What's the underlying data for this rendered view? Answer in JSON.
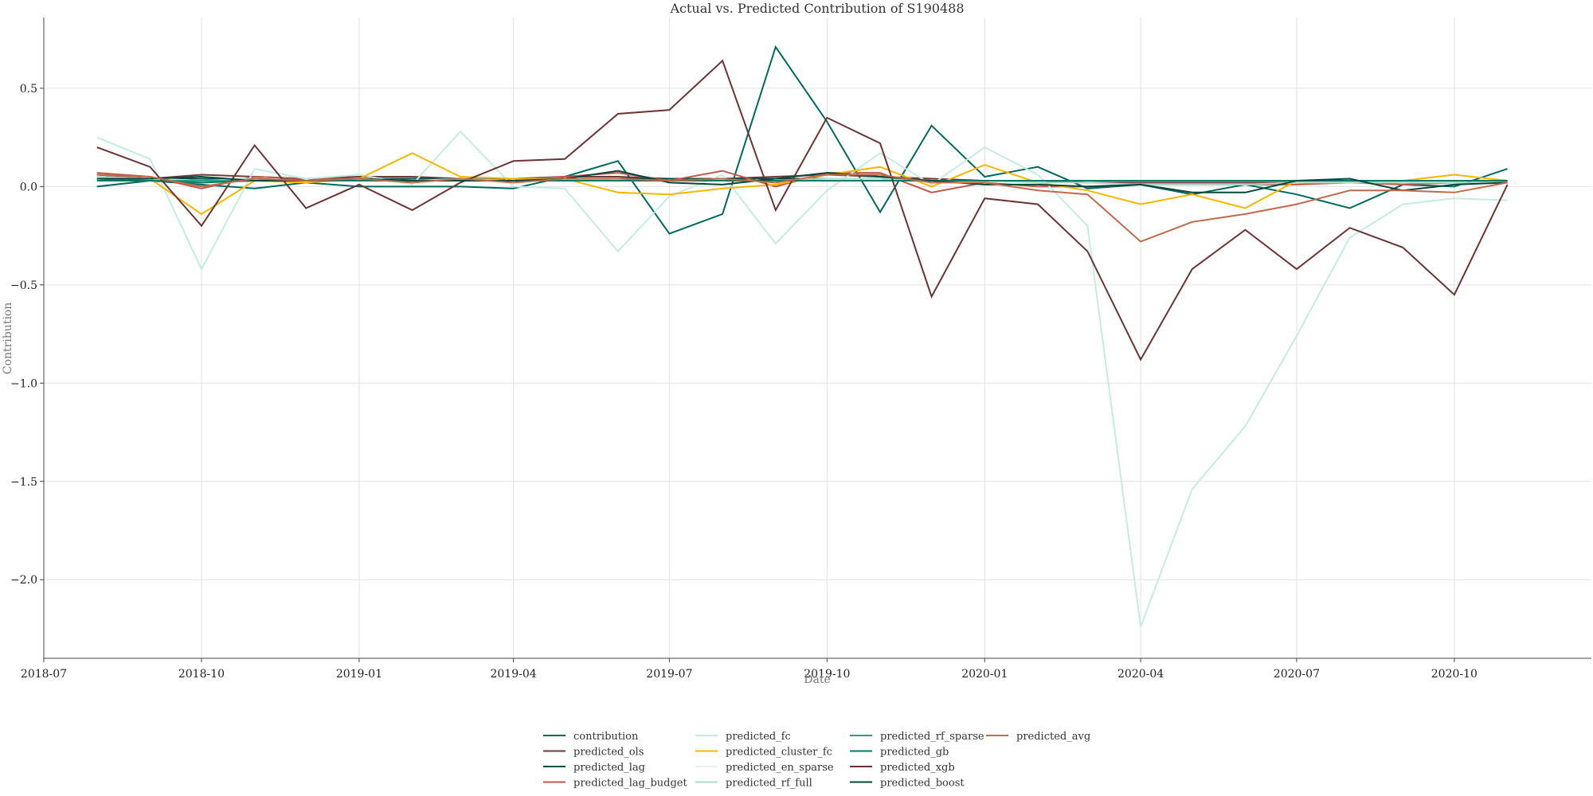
{
  "chart_data": {
    "type": "line",
    "title": "Actual vs. Predicted Contribution of S190488",
    "xlabel": "Date",
    "ylabel": "Contribution",
    "x_axis_type": "date",
    "x_range": [
      "2018-07-01",
      "2020-12-20"
    ],
    "ylim": [
      -2.4,
      0.86
    ],
    "x_ticks": [
      "2018-07",
      "2018-10",
      "2019-01",
      "2019-04",
      "2019-07",
      "2019-10",
      "2020-01",
      "2020-04",
      "2020-07",
      "2020-10"
    ],
    "y_ticks": [
      0.5,
      0.0,
      -0.5,
      -1.0,
      -1.5,
      -2.0
    ],
    "y_tick_labels": [
      "0.5",
      "0.0",
      "−0.5",
      "−1.0",
      "−1.5",
      "−2.0"
    ],
    "grid": true,
    "legend_position": "bottom-center",
    "legend_columns": 4,
    "x": [
      "2018-08",
      "2018-09",
      "2018-10",
      "2018-11",
      "2018-12",
      "2019-01",
      "2019-02",
      "2019-03",
      "2019-04",
      "2019-05",
      "2019-06",
      "2019-07",
      "2019-08",
      "2019-09",
      "2019-10",
      "2019-11",
      "2019-12",
      "2020-01",
      "2020-02",
      "2020-03",
      "2020-04",
      "2020-05",
      "2020-06",
      "2020-07",
      "2020-08",
      "2020-09",
      "2020-10",
      "2020-11"
    ],
    "series": [
      {
        "name": "contribution",
        "color": "#00695c",
        "values": [
          0.0,
          0.03,
          0.01,
          -0.01,
          0.02,
          0.0,
          0.0,
          0.0,
          -0.01,
          0.05,
          0.13,
          -0.24,
          -0.14,
          0.71,
          0.33,
          -0.13,
          0.31,
          0.05,
          0.1,
          -0.01,
          0.01,
          -0.04,
          0.01,
          -0.04,
          -0.11,
          0.01,
          0.0,
          0.09
        ]
      },
      {
        "name": "predicted_ols",
        "color": "#6d3a3a",
        "values": [
          0.06,
          0.04,
          0.06,
          0.05,
          0.04,
          0.05,
          0.05,
          0.04,
          0.04,
          0.05,
          0.05,
          0.04,
          0.04,
          0.05,
          0.06,
          0.05,
          0.04,
          0.03,
          0.03,
          0.02,
          0.02,
          0.02,
          0.02,
          0.02,
          0.02,
          0.02,
          0.02,
          0.02
        ]
      },
      {
        "name": "predicted_lag",
        "color": "#0b4f4a",
        "values": [
          0.04,
          0.04,
          0.04,
          0.03,
          0.04,
          0.04,
          0.04,
          0.04,
          0.04,
          0.04,
          0.04,
          0.04,
          0.04,
          0.04,
          0.04,
          0.04,
          0.03,
          0.03,
          0.03,
          0.03,
          0.03,
          0.03,
          0.03,
          0.03,
          0.03,
          0.03,
          0.03,
          0.03
        ]
      },
      {
        "name": "predicted_lag_budget",
        "color": "#c0584b",
        "values": [
          0.07,
          0.05,
          -0.01,
          0.05,
          0.04,
          0.04,
          0.02,
          0.04,
          0.03,
          0.05,
          0.07,
          0.03,
          0.08,
          0.0,
          0.07,
          0.07,
          -0.03,
          0.02,
          0.0,
          0.0,
          0.01,
          0.01,
          0.01,
          0.01,
          0.02,
          0.01,
          0.02,
          0.02
        ]
      },
      {
        "name": "predicted_fc",
        "color": "#c5ece3",
        "values": [
          0.25,
          0.14,
          -0.42,
          0.09,
          0.04,
          0.06,
          0.01,
          0.28,
          0.0,
          -0.01,
          -0.33,
          -0.05,
          0.06,
          -0.29,
          -0.02,
          0.17,
          0.01,
          0.2,
          0.06,
          -0.2,
          -2.24,
          -1.54,
          -1.22,
          -0.76,
          -0.26,
          -0.09,
          -0.06,
          -0.07
        ]
      },
      {
        "name": "predicted_cluster_fc",
        "color": "#f5b700",
        "values": [
          0.05,
          0.04,
          -0.14,
          0.03,
          0.02,
          0.04,
          0.17,
          0.05,
          0.04,
          0.04,
          -0.03,
          -0.04,
          -0.01,
          0.01,
          0.06,
          0.1,
          0.0,
          0.11,
          0.02,
          -0.02,
          -0.09,
          -0.04,
          -0.11,
          0.03,
          0.02,
          0.03,
          0.06,
          0.03
        ]
      },
      {
        "name": "predicted_en_sparse",
        "color": "#e3f3ef",
        "values": [
          0.05,
          0.04,
          0.03,
          0.03,
          0.03,
          0.04,
          0.03,
          0.03,
          0.03,
          0.03,
          0.03,
          0.03,
          0.03,
          0.03,
          0.03,
          0.03,
          0.03,
          0.03,
          0.03,
          0.03,
          0.03,
          0.03,
          0.03,
          0.03,
          0.03,
          0.03,
          0.03,
          0.03
        ]
      },
      {
        "name": "predicted_rf_full",
        "color": "#a8dccd",
        "values": [
          0.05,
          0.04,
          0.03,
          0.04,
          0.03,
          0.04,
          0.03,
          0.04,
          0.03,
          0.04,
          0.03,
          0.03,
          0.03,
          0.03,
          0.04,
          0.04,
          0.03,
          0.03,
          0.02,
          0.02,
          0.01,
          0.01,
          0.01,
          0.02,
          0.02,
          0.02,
          0.02,
          0.02
        ]
      },
      {
        "name": "predicted_rf_sparse",
        "color": "#26a08a",
        "values": [
          0.04,
          0.03,
          0.03,
          0.03,
          0.03,
          0.03,
          0.03,
          0.03,
          0.03,
          0.03,
          0.03,
          0.03,
          0.03,
          0.03,
          0.03,
          0.03,
          0.03,
          0.03,
          0.03,
          0.03,
          0.03,
          0.03,
          0.03,
          0.03,
          0.03,
          0.03,
          0.03,
          0.03
        ]
      },
      {
        "name": "predicted_gb",
        "color": "#0a7a66",
        "values": [
          0.03,
          0.03,
          0.02,
          0.03,
          0.03,
          0.03,
          0.03,
          0.03,
          0.03,
          0.03,
          0.03,
          0.03,
          0.03,
          0.03,
          0.03,
          0.03,
          0.03,
          0.03,
          0.03,
          0.03,
          0.03,
          0.03,
          0.03,
          0.03,
          0.03,
          0.03,
          0.03,
          0.03
        ]
      },
      {
        "name": "predicted_xgb",
        "color": "#6b3433",
        "values": [
          0.2,
          0.1,
          -0.2,
          0.21,
          -0.11,
          0.01,
          -0.12,
          0.02,
          0.13,
          0.14,
          0.37,
          0.39,
          0.64,
          -0.12,
          0.35,
          0.22,
          -0.56,
          -0.06,
          -0.09,
          -0.33,
          -0.88,
          -0.42,
          -0.22,
          -0.42,
          -0.21,
          -0.31,
          -0.55,
          0.01
        ]
      },
      {
        "name": "predicted_boost",
        "color": "#06473c",
        "values": [
          0.04,
          0.04,
          0.05,
          0.03,
          0.03,
          0.04,
          0.03,
          0.03,
          0.03,
          0.04,
          0.08,
          0.02,
          0.01,
          0.04,
          0.07,
          0.05,
          0.03,
          0.01,
          0.01,
          0.0,
          0.01,
          -0.03,
          -0.03,
          0.03,
          0.04,
          -0.02,
          0.01,
          0.02
        ]
      },
      {
        "name": "predicted_avg",
        "color": "#c06a4a",
        "values": [
          0.06,
          0.05,
          0.0,
          0.04,
          0.03,
          0.04,
          0.02,
          0.04,
          0.02,
          0.04,
          0.04,
          0.03,
          0.04,
          0.02,
          0.06,
          0.06,
          0.02,
          0.02,
          -0.02,
          -0.04,
          -0.28,
          -0.18,
          -0.14,
          -0.09,
          -0.02,
          -0.02,
          -0.03,
          0.02
        ]
      }
    ]
  }
}
